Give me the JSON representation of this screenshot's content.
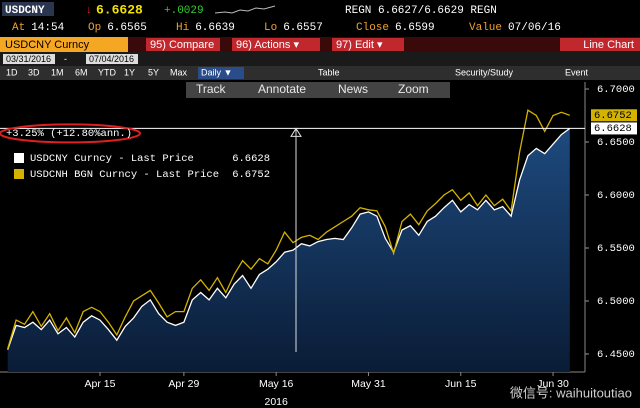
{
  "header": {
    "ticker": "USDCNY",
    "arrow": "↓",
    "last": "6.6628",
    "change": "+.0029",
    "quote": "REGN 6.6627/6.6629 REGN"
  },
  "stats": [
    {
      "label": "At",
      "value": "14:54"
    },
    {
      "label": "Op",
      "value": "6.6565"
    },
    {
      "label": "Hi",
      "value": "6.6639"
    },
    {
      "label": "Lo",
      "value": "6.6557"
    },
    {
      "label": "Close",
      "value": "6.6599"
    },
    {
      "label": "Value",
      "value": "07/06/16"
    }
  ],
  "toolbar": {
    "security": "USDCNY Curncy",
    "buttons": [
      "95) Compare",
      "96) Actions ▾",
      "97) Edit ▾"
    ],
    "view": "Line Chart"
  },
  "dates": [
    "03/31/2016",
    "07/04/2016"
  ],
  "periods": [
    "1D",
    "3D",
    "1M",
    "6M",
    "YTD",
    "1Y",
    "5Y",
    "Max"
  ],
  "frequency": "Daily ▼",
  "options": [
    "Table",
    "Security/Study",
    "Event"
  ],
  "tools": [
    "Track",
    "Annotate",
    "News",
    "Zoom"
  ],
  "watermark": "微信号: waihuitoutiao",
  "chart_data": {
    "type": "line",
    "annotation": "+3.25% (+12.80%ann.)",
    "x_axis_year": "2016",
    "categories": [
      null,
      null,
      null,
      null,
      null,
      null,
      null,
      null,
      null,
      null,
      null,
      "Apr 15",
      null,
      null,
      null,
      null,
      null,
      null,
      null,
      null,
      null,
      "Apr 29",
      null,
      null,
      null,
      null,
      null,
      null,
      null,
      null,
      null,
      null,
      "May 16",
      null,
      null,
      null,
      null,
      null,
      null,
      null,
      null,
      null,
      null,
      "May 31",
      null,
      null,
      null,
      null,
      null,
      null,
      null,
      null,
      null,
      null,
      "Jun 15",
      null,
      null,
      null,
      null,
      null,
      null,
      null,
      null,
      null,
      null,
      "Jun 30",
      null,
      null
    ],
    "series": [
      {
        "name": "USDCNY Curncy - Last Price",
        "color": "#ffffff",
        "fill": "#12325a",
        "values": [
          6.454,
          6.477,
          6.475,
          6.48,
          6.473,
          6.482,
          6.469,
          6.475,
          6.466,
          6.48,
          6.486,
          6.482,
          6.473,
          6.463,
          6.476,
          6.484,
          6.495,
          6.501,
          6.488,
          6.48,
          6.477,
          6.48,
          6.501,
          6.508,
          6.501,
          6.512,
          6.503,
          6.516,
          6.524,
          6.512,
          6.525,
          6.53,
          6.537,
          6.546,
          6.548,
          6.554,
          6.552,
          6.556,
          6.558,
          6.559,
          6.558,
          6.569,
          6.582,
          6.584,
          6.58,
          6.559,
          6.546,
          6.567,
          6.571,
          6.562,
          6.575,
          6.58,
          6.588,
          6.595,
          6.584,
          6.591,
          6.586,
          6.595,
          6.586,
          6.589,
          6.58,
          6.614,
          6.637,
          6.644,
          6.639,
          6.648,
          6.657,
          6.6628
        ]
      },
      {
        "name": "USDCNH BGN Curncy - Last Price",
        "color": "#d4b300",
        "values": [
          6.455,
          6.482,
          6.478,
          6.49,
          6.476,
          6.488,
          6.472,
          6.484,
          6.47,
          6.49,
          6.494,
          6.49,
          6.48,
          6.468,
          6.485,
          6.5,
          6.505,
          6.51,
          6.498,
          6.485,
          6.49,
          6.49,
          6.512,
          6.52,
          6.51,
          6.522,
          6.508,
          6.525,
          6.538,
          6.53,
          6.54,
          6.535,
          6.548,
          6.565,
          6.555,
          6.56,
          6.562,
          6.558,
          6.565,
          6.57,
          6.575,
          6.58,
          6.588,
          6.586,
          6.585,
          6.57,
          6.545,
          6.575,
          6.582,
          6.572,
          6.585,
          6.592,
          6.6,
          6.605,
          6.595,
          6.602,
          6.59,
          6.6,
          6.59,
          6.596,
          6.585,
          6.64,
          6.68,
          6.675,
          6.66,
          6.675,
          6.678,
          6.6752
        ]
      }
    ],
    "ylim": [
      6.433,
      6.7066
    ],
    "yticks": [
      {
        "value": 6.45,
        "label": "6.4500"
      },
      {
        "value": 6.5,
        "label": "6.5000"
      },
      {
        "value": 6.55,
        "label": "6.5500"
      },
      {
        "value": 6.6,
        "label": "6.6000"
      },
      {
        "value": 6.65,
        "label": "6.6500"
      },
      {
        "value": 6.7,
        "label": "6.7000"
      }
    ],
    "grid": false
  }
}
